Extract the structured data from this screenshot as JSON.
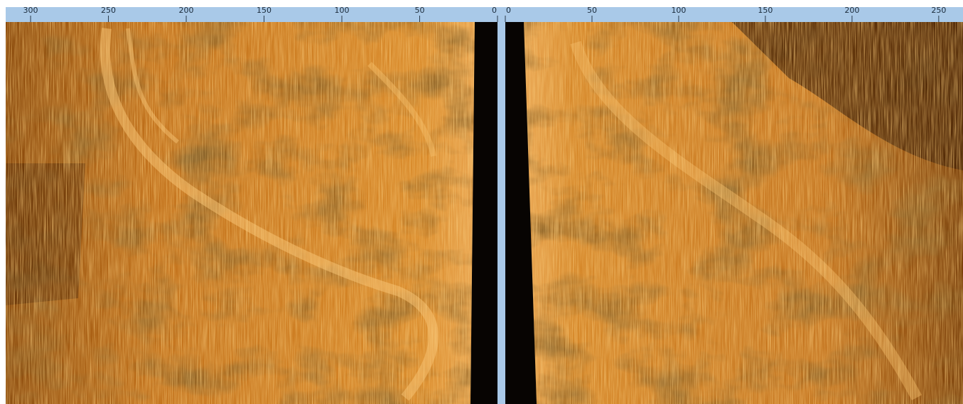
{
  "left_ruler": {
    "lim": [
      316,
      0
    ],
    "ticks": [
      300,
      250,
      200,
      150,
      100,
      50,
      0
    ]
  },
  "right_ruler": {
    "lim": [
      0,
      264
    ],
    "ticks": [
      0,
      50,
      100,
      150,
      200,
      250
    ]
  }
}
